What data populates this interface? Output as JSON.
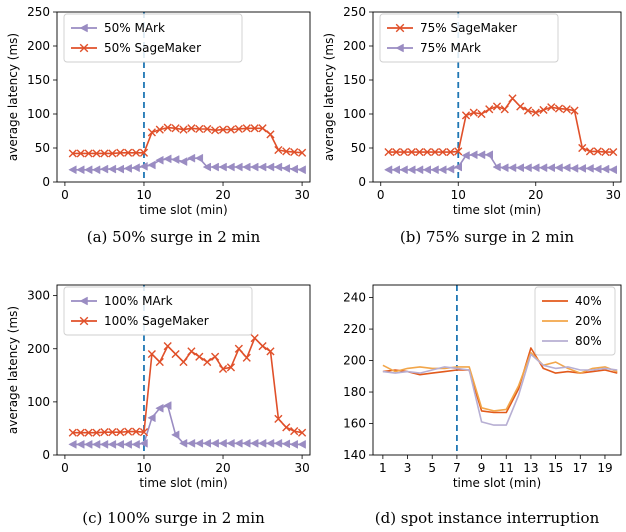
{
  "colors": {
    "mark": "#9A8CC2",
    "sagemaker": "#E0502A",
    "vline": "#1F77B4",
    "c40": "#E25A1C",
    "c20": "#F2A64A",
    "c80": "#B7AFD3"
  },
  "chart_data": [
    {
      "type": "line",
      "caption": "(a) 50% surge in 2 min",
      "xlabel": "time slot (min)",
      "ylabel": "average latency (ms)",
      "xlim": [
        -1,
        31
      ],
      "ylim": [
        0,
        250
      ],
      "xticks": [
        0,
        10,
        20,
        30
      ],
      "yticks": [
        0,
        50,
        100,
        150,
        200,
        250
      ],
      "vline": 10,
      "legend_position": "top-left",
      "x": [
        1,
        2,
        3,
        4,
        5,
        6,
        7,
        8,
        9,
        10,
        11,
        12,
        13,
        14,
        15,
        16,
        17,
        18,
        19,
        20,
        21,
        22,
        23,
        24,
        25,
        26,
        27,
        28,
        29,
        30
      ],
      "series": [
        {
          "name": "50% MArk",
          "color_key": "mark",
          "marker": "tri",
          "values": [
            18,
            18,
            18,
            18,
            19,
            19,
            19,
            20,
            21,
            23,
            25,
            32,
            34,
            33,
            30,
            35,
            35,
            22,
            22,
            22,
            22,
            22,
            22,
            22,
            22,
            22,
            22,
            20,
            19,
            18
          ]
        },
        {
          "name": "50% SageMaker",
          "color_key": "sagemaker",
          "marker": "x",
          "values": [
            42,
            42,
            42,
            42,
            42,
            42,
            43,
            43,
            43,
            43,
            73,
            77,
            80,
            79,
            77,
            79,
            78,
            78,
            76,
            77,
            77,
            78,
            79,
            79,
            79,
            70,
            47,
            45,
            44,
            43
          ]
        }
      ]
    },
    {
      "type": "line",
      "caption": "(b) 75% surge in 2 min",
      "xlabel": "time slot (min)",
      "ylabel": "average latency (ms)",
      "xlim": [
        -1,
        31
      ],
      "ylim": [
        0,
        250
      ],
      "xticks": [
        0,
        10,
        20,
        30
      ],
      "yticks": [
        0,
        50,
        100,
        150,
        200,
        250
      ],
      "vline": 10,
      "legend_position": "top-left",
      "x": [
        1,
        2,
        3,
        4,
        5,
        6,
        7,
        8,
        9,
        10,
        11,
        12,
        13,
        14,
        15,
        16,
        17,
        18,
        19,
        20,
        21,
        22,
        23,
        24,
        25,
        26,
        27,
        28,
        29,
        30
      ],
      "series": [
        {
          "name": "75% SageMaker",
          "color_key": "sagemaker",
          "marker": "x",
          "values": [
            44,
            44,
            44,
            44,
            44,
            44,
            44,
            44,
            44,
            45,
            98,
            102,
            100,
            107,
            111,
            107,
            123,
            111,
            105,
            102,
            106,
            110,
            108,
            107,
            105,
            50,
            45,
            45,
            44,
            44
          ]
        },
        {
          "name": "75% MArk",
          "color_key": "mark",
          "marker": "tri",
          "values": [
            18,
            18,
            18,
            18,
            18,
            18,
            18,
            18,
            19,
            22,
            39,
            40,
            40,
            40,
            22,
            21,
            21,
            21,
            21,
            21,
            21,
            21,
            21,
            21,
            20,
            20,
            20,
            19,
            19,
            18
          ]
        }
      ]
    },
    {
      "type": "line",
      "caption": "(c) 100% surge in 2 min",
      "xlabel": "time slot (min)",
      "ylabel": "average latency (ms)",
      "xlim": [
        -1,
        31
      ],
      "ylim": [
        0,
        320
      ],
      "xticks": [
        0,
        10,
        20,
        30
      ],
      "yticks": [
        0,
        100,
        200,
        300
      ],
      "vline": 10,
      "legend_position": "top-left",
      "x": [
        1,
        2,
        3,
        4,
        5,
        6,
        7,
        8,
        9,
        10,
        11,
        12,
        13,
        14,
        15,
        16,
        17,
        18,
        19,
        20,
        21,
        22,
        23,
        24,
        25,
        26,
        27,
        28,
        29,
        30
      ],
      "series": [
        {
          "name": "100% MArk",
          "color_key": "mark",
          "marker": "tri",
          "values": [
            20,
            20,
            20,
            20,
            20,
            20,
            20,
            20,
            20,
            22,
            70,
            88,
            93,
            38,
            22,
            22,
            22,
            22,
            22,
            22,
            22,
            22,
            22,
            22,
            22,
            22,
            22,
            21,
            20,
            20
          ]
        },
        {
          "name": "100% SageMaker",
          "color_key": "sagemaker",
          "marker": "x",
          "values": [
            42,
            42,
            42,
            42,
            43,
            43,
            43,
            44,
            44,
            43,
            190,
            175,
            205,
            190,
            175,
            195,
            185,
            175,
            185,
            162,
            165,
            200,
            183,
            220,
            205,
            195,
            68,
            52,
            45,
            42
          ]
        }
      ]
    },
    {
      "type": "line",
      "caption": "(d) spot instance interruption",
      "xlabel": "time slot (min)",
      "ylabel": "",
      "xlim": [
        0.2,
        20.3
      ],
      "ylim": [
        140,
        248
      ],
      "xticks": [
        1,
        3,
        5,
        7,
        9,
        11,
        13,
        15,
        17,
        19
      ],
      "yticks": [
        140,
        160,
        180,
        200,
        220,
        240
      ],
      "vline": 7,
      "legend_position": "top-right",
      "x": [
        1,
        2,
        3,
        4,
        5,
        6,
        7,
        8,
        9,
        10,
        11,
        12,
        13,
        14,
        15,
        16,
        17,
        18,
        19,
        20
      ],
      "series": [
        {
          "name": "40%",
          "color_key": "c40",
          "values": [
            193,
            194,
            193,
            191,
            192,
            193,
            194,
            194,
            168,
            167,
            167,
            182,
            208,
            195,
            192,
            193,
            192,
            193,
            194,
            192
          ]
        },
        {
          "name": "20%",
          "color_key": "c20",
          "values": [
            197,
            193,
            195,
            196,
            195,
            195,
            196,
            196,
            170,
            168,
            169,
            184,
            205,
            197,
            199,
            195,
            192,
            195,
            196,
            193
          ]
        },
        {
          "name": "80%",
          "color_key": "c80",
          "values": [
            193,
            192,
            193,
            192,
            194,
            196,
            195,
            194,
            161,
            159,
            159,
            178,
            204,
            197,
            195,
            196,
            194,
            194,
            195,
            194
          ]
        }
      ]
    }
  ]
}
